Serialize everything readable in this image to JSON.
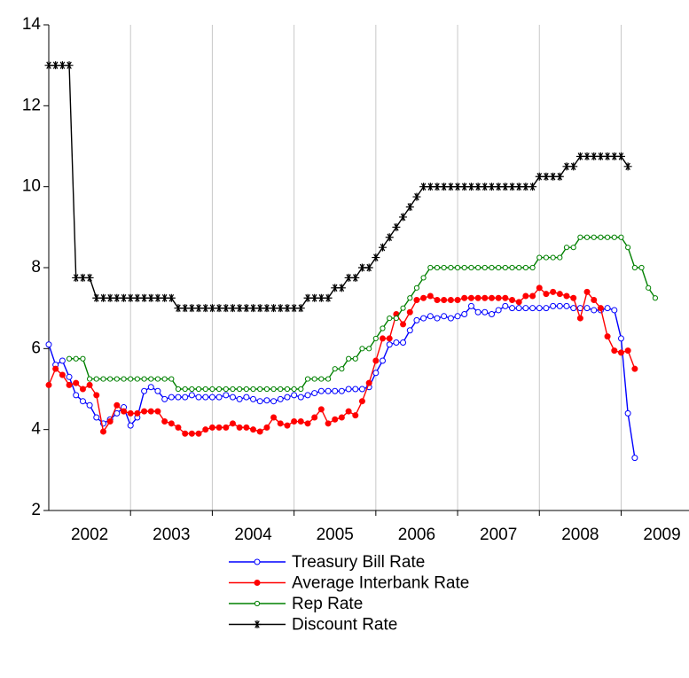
{
  "chart_data": {
    "type": "line",
    "x": [
      2002,
      2002.083,
      2002.167,
      2002.25,
      2002.333,
      2002.417,
      2002.5,
      2002.583,
      2002.667,
      2002.75,
      2002.833,
      2002.917,
      2003,
      2003.083,
      2003.167,
      2003.25,
      2003.333,
      2003.417,
      2003.5,
      2003.583,
      2003.667,
      2003.75,
      2003.833,
      2003.917,
      2004,
      2004.083,
      2004.167,
      2004.25,
      2004.333,
      2004.417,
      2004.5,
      2004.583,
      2004.667,
      2004.75,
      2004.833,
      2004.917,
      2005,
      2005.083,
      2005.167,
      2005.25,
      2005.333,
      2005.417,
      2005.5,
      2005.583,
      2005.667,
      2005.75,
      2005.833,
      2005.917,
      2006,
      2006.083,
      2006.167,
      2006.25,
      2006.333,
      2006.417,
      2006.5,
      2006.583,
      2006.667,
      2006.75,
      2006.833,
      2006.917,
      2007,
      2007.083,
      2007.167,
      2007.25,
      2007.333,
      2007.417,
      2007.5,
      2007.583,
      2007.667,
      2007.75,
      2007.833,
      2007.917,
      2008,
      2008.083,
      2008.167,
      2008.25,
      2008.333,
      2008.417,
      2008.5,
      2008.583,
      2008.667,
      2008.75,
      2008.833,
      2008.917,
      2009,
      2009.083,
      2009.167,
      2009.25,
      2009.333,
      2009.417
    ],
    "series": [
      {
        "name": "Treasury Bill Rate",
        "color": "#0000ff",
        "marker": "open-circle",
        "values": [
          6.1,
          5.6,
          5.7,
          5.3,
          4.85,
          4.7,
          4.6,
          4.3,
          4.15,
          4.25,
          4.4,
          4.55,
          4.1,
          4.3,
          4.95,
          5.05,
          4.95,
          4.75,
          4.8,
          4.8,
          4.8,
          4.85,
          4.8,
          4.8,
          4.8,
          4.8,
          4.85,
          4.8,
          4.75,
          4.8,
          4.75,
          4.7,
          4.72,
          4.7,
          4.75,
          4.8,
          4.85,
          4.8,
          4.85,
          4.9,
          4.95,
          4.95,
          4.95,
          4.95,
          5.0,
          5.0,
          5.0,
          5.05,
          5.4,
          5.7,
          6.1,
          6.15,
          6.15,
          6.45,
          6.7,
          6.75,
          6.8,
          6.75,
          6.8,
          6.75,
          6.8,
          6.85,
          7.05,
          6.9,
          6.9,
          6.85,
          6.95,
          7.05,
          7.0,
          7.0,
          7.0,
          7.0,
          7.0,
          7.0,
          7.05,
          7.05,
          7.05,
          7.0,
          7.0,
          7.0,
          6.95,
          6.95,
          7.0,
          6.95,
          6.25,
          4.4,
          3.3,
          null,
          null,
          null
        ]
      },
      {
        "name": "Average Interbank Rate",
        "color": "#ff0000",
        "marker": "filled-circle",
        "values": [
          5.1,
          5.5,
          5.35,
          5.1,
          5.15,
          5.0,
          5.1,
          4.85,
          3.95,
          4.2,
          4.6,
          4.45,
          4.4,
          4.4,
          4.45,
          4.45,
          4.45,
          4.2,
          4.15,
          4.05,
          3.9,
          3.9,
          3.9,
          4.0,
          4.05,
          4.05,
          4.05,
          4.15,
          4.05,
          4.05,
          4.0,
          3.95,
          4.05,
          4.3,
          4.15,
          4.1,
          4.2,
          4.2,
          4.15,
          4.3,
          4.5,
          4.15,
          4.25,
          4.3,
          4.45,
          4.35,
          4.7,
          5.15,
          5.7,
          6.25,
          6.25,
          6.85,
          6.6,
          6.9,
          7.2,
          7.25,
          7.3,
          7.2,
          7.2,
          7.2,
          7.2,
          7.25,
          7.25,
          7.25,
          7.25,
          7.25,
          7.25,
          7.25,
          7.2,
          7.15,
          7.3,
          7.3,
          7.5,
          7.35,
          7.4,
          7.35,
          7.3,
          7.25,
          6.75,
          7.4,
          7.2,
          7.0,
          6.3,
          5.95,
          5.9,
          5.95,
          5.5,
          null,
          null,
          null
        ]
      },
      {
        "name": "Rep Rate",
        "color": "#008000",
        "marker": "small-open-circle",
        "values": [
          null,
          null,
          null,
          5.75,
          5.75,
          5.75,
          5.25,
          5.25,
          5.25,
          5.25,
          5.25,
          5.25,
          5.25,
          5.25,
          5.25,
          5.25,
          5.25,
          5.25,
          5.25,
          5,
          5,
          5,
          5,
          5,
          5,
          5,
          5,
          5,
          5,
          5,
          5,
          5,
          5,
          5,
          5,
          5,
          5,
          5,
          5.25,
          5.25,
          5.25,
          5.25,
          5.5,
          5.5,
          5.75,
          5.75,
          6,
          6,
          6.25,
          6.5,
          6.75,
          6.75,
          7,
          7.25,
          7.5,
          7.75,
          8,
          8,
          8,
          8,
          8,
          8,
          8,
          8,
          8,
          8,
          8,
          8,
          8,
          8,
          8,
          8,
          8.25,
          8.25,
          8.25,
          8.25,
          8.5,
          8.5,
          8.75,
          8.75,
          8.75,
          8.75,
          8.75,
          8.75,
          8.75,
          8.5,
          8,
          8,
          7.5,
          7.25
        ]
      },
      {
        "name": "Discount Rate",
        "color": "#000000",
        "marker": "asterisk",
        "values": [
          13,
          13,
          13,
          13,
          7.75,
          7.75,
          7.75,
          7.25,
          7.25,
          7.25,
          7.25,
          7.25,
          7.25,
          7.25,
          7.25,
          7.25,
          7.25,
          7.25,
          7.25,
          7,
          7,
          7,
          7,
          7,
          7,
          7,
          7,
          7,
          7,
          7,
          7,
          7,
          7,
          7,
          7,
          7,
          7,
          7,
          7.25,
          7.25,
          7.25,
          7.25,
          7.5,
          7.5,
          7.75,
          7.75,
          8,
          8,
          8.25,
          8.5,
          8.75,
          9,
          9.25,
          9.5,
          9.75,
          10,
          10,
          10,
          10,
          10,
          10,
          10,
          10,
          10,
          10,
          10,
          10,
          10,
          10,
          10,
          10,
          10,
          10.25,
          10.25,
          10.25,
          10.25,
          10.5,
          10.5,
          10.75,
          10.75,
          10.75,
          10.75,
          10.75,
          10.75,
          10.75,
          10.5,
          null,
          null,
          null,
          null
        ]
      }
    ],
    "xlim": [
      2002,
      2009.83
    ],
    "xticks": [
      {
        "value": 2002.5,
        "label": "2002"
      },
      {
        "value": 2003.5,
        "label": "2003"
      },
      {
        "value": 2004.5,
        "label": "2004"
      },
      {
        "value": 2005.5,
        "label": "2005"
      },
      {
        "value": 2006.5,
        "label": "2006"
      },
      {
        "value": 2007.5,
        "label": "2007"
      },
      {
        "value": 2008.5,
        "label": "2008"
      },
      {
        "value": 2009.5,
        "label": "2009"
      }
    ],
    "xgrid": [
      2003,
      2004,
      2005,
      2006,
      2007,
      2008,
      2009
    ],
    "ylim": [
      2,
      14
    ],
    "yticks": [
      2,
      4,
      6,
      8,
      10,
      12,
      14
    ],
    "legend": "bottom"
  }
}
